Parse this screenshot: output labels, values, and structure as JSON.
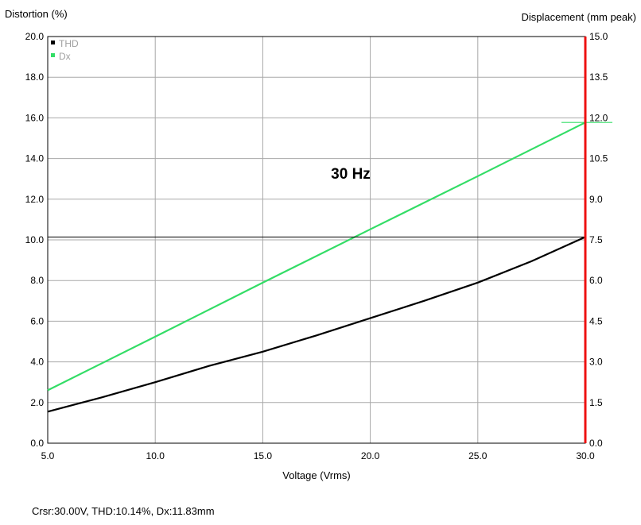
{
  "chart_data": {
    "type": "line",
    "ylabel_left": "Distortion (%)",
    "ylabel_right": "Displacement (mm peak)",
    "xlabel": "Voltage (Vrms)",
    "annotation": "30 Hz",
    "xlim": [
      5.0,
      30.0
    ],
    "ylim_left": [
      0.0,
      20.0
    ],
    "ylim_right": [
      0.0,
      15.0
    ],
    "x_ticks": [
      "5.0",
      "10.0",
      "15.0",
      "20.0",
      "25.0",
      "30.0"
    ],
    "y_ticks_left": [
      "0.0",
      "2.0",
      "4.0",
      "6.0",
      "8.0",
      "10.0",
      "12.0",
      "14.0",
      "16.0",
      "18.0",
      "20.0"
    ],
    "y_ticks_right": [
      "0.0",
      "1.5",
      "3.0",
      "4.5",
      "6.0",
      "7.5",
      "9.0",
      "10.5",
      "12.0",
      "13.5",
      "15.0"
    ],
    "grid": true,
    "legend_position": "top-left",
    "cursor": {
      "x": 30.0,
      "thd": 10.14,
      "dx": 11.83
    },
    "series": [
      {
        "name": "THD",
        "axis": "left",
        "color": "#000000",
        "x": [
          5.0,
          7.5,
          10.0,
          12.5,
          15.0,
          17.5,
          20.0,
          22.5,
          25.0,
          27.5,
          30.0
        ],
        "y": [
          1.55,
          2.25,
          3.0,
          3.8,
          4.5,
          5.3,
          6.15,
          7.0,
          7.9,
          8.95,
          10.14
        ]
      },
      {
        "name": "Dx",
        "axis": "right",
        "color": "#33dd66",
        "x": [
          5.0,
          10.0,
          15.0,
          20.0,
          25.0,
          30.0
        ],
        "y": [
          1.95,
          3.93,
          5.92,
          7.89,
          9.85,
          11.83
        ]
      }
    ],
    "marker_color": "#ee1111"
  },
  "footer": {
    "cursor_readout": "Crsr:30.00V, THD:10.14%, Dx:11.83mm"
  }
}
